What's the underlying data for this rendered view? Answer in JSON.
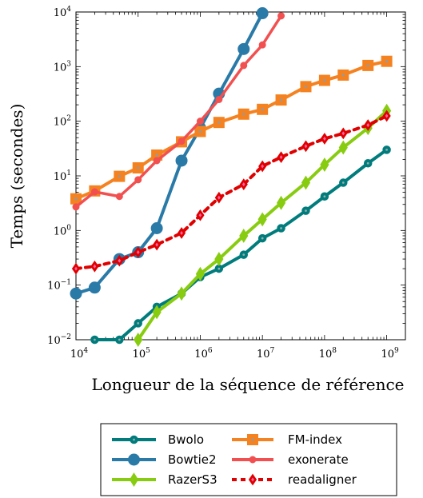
{
  "chart_data": {
    "type": "line",
    "xlabel": "Longueur de la séquence de référence",
    "ylabel": "Temps (secondes)",
    "xscale": "log",
    "yscale": "log",
    "xlim": [
      10000,
      2000000000
    ],
    "ylim": [
      0.01,
      10000
    ],
    "grid": false,
    "legend_position": "bottom",
    "x_ticks": [
      {
        "base": "10",
        "exp": "4",
        "value": 10000
      },
      {
        "base": "10",
        "exp": "5",
        "value": 100000
      },
      {
        "base": "10",
        "exp": "6",
        "value": 1000000
      },
      {
        "base": "10",
        "exp": "7",
        "value": 10000000
      },
      {
        "base": "10",
        "exp": "8",
        "value": 100000000
      },
      {
        "base": "10",
        "exp": "9",
        "value": 1000000000
      }
    ],
    "y_ticks": [
      {
        "base": "10",
        "exp": "−2",
        "value": 0.01
      },
      {
        "base": "10",
        "exp": "−1",
        "value": 0.1
      },
      {
        "base": "10",
        "exp": "0",
        "value": 1
      },
      {
        "base": "10",
        "exp": "1",
        "value": 10
      },
      {
        "base": "10",
        "exp": "2",
        "value": 100
      },
      {
        "base": "10",
        "exp": "3",
        "value": 1000
      },
      {
        "base": "10",
        "exp": "4",
        "value": 10000
      }
    ],
    "series": [
      {
        "name": "Bwolo",
        "color": "#007C7C",
        "marker": "circle",
        "dashed": false,
        "points": [
          [
            20000,
            0.01
          ],
          [
            50000,
            0.01
          ],
          [
            100000,
            0.02
          ],
          [
            200000,
            0.04
          ],
          [
            500000,
            0.07
          ],
          [
            1000000,
            0.14
          ],
          [
            2000000,
            0.2
          ],
          [
            5000000,
            0.36
          ],
          [
            10000000,
            0.72
          ],
          [
            20000000,
            1.1
          ],
          [
            50000000,
            2.3
          ],
          [
            100000000,
            4.2
          ],
          [
            200000000,
            7.5
          ],
          [
            500000000,
            17
          ],
          [
            1000000000,
            30
          ]
        ]
      },
      {
        "name": "Bowtie2",
        "color": "#2A7AA8",
        "marker": "circle-large",
        "dashed": false,
        "points": [
          [
            10000,
            0.07
          ],
          [
            20000,
            0.09
          ],
          [
            50000,
            0.3
          ],
          [
            100000,
            0.4
          ],
          [
            200000,
            1.1
          ],
          [
            500000,
            19
          ],
          [
            1000000,
            75
          ],
          [
            2000000,
            320
          ],
          [
            5000000,
            2100
          ],
          [
            10000000,
            9500
          ]
        ]
      },
      {
        "name": "RazerS3",
        "color": "#88CC11",
        "marker": "diamond",
        "dashed": false,
        "points": [
          [
            100000,
            0.01
          ],
          [
            200000,
            0.032
          ],
          [
            500000,
            0.07
          ],
          [
            1000000,
            0.16
          ],
          [
            2000000,
            0.3
          ],
          [
            5000000,
            0.8
          ],
          [
            10000000,
            1.6
          ],
          [
            20000000,
            3.2
          ],
          [
            50000000,
            7.5
          ],
          [
            100000000,
            16
          ],
          [
            200000000,
            33
          ],
          [
            500000000,
            75
          ],
          [
            1000000000,
            155
          ]
        ]
      },
      {
        "name": "FM-index",
        "color": "#F58220",
        "marker": "square",
        "dashed": false,
        "points": [
          [
            10000,
            3.8
          ],
          [
            20000,
            5.3
          ],
          [
            50000,
            9.8
          ],
          [
            100000,
            14
          ],
          [
            200000,
            24
          ],
          [
            500000,
            42
          ],
          [
            1000000,
            65
          ],
          [
            2000000,
            95
          ],
          [
            5000000,
            135
          ],
          [
            10000000,
            165
          ],
          [
            20000000,
            245
          ],
          [
            50000000,
            430
          ],
          [
            100000000,
            560
          ],
          [
            200000000,
            700
          ],
          [
            500000000,
            1050
          ],
          [
            1000000000,
            1250
          ]
        ]
      },
      {
        "name": "exonerate",
        "color": "#F25050",
        "marker": "circle-small",
        "dashed": false,
        "points": [
          [
            10000,
            2.7
          ],
          [
            20000,
            5.1
          ],
          [
            50000,
            4.2
          ],
          [
            100000,
            8.5
          ],
          [
            200000,
            19
          ],
          [
            500000,
            43
          ],
          [
            1000000,
            100
          ],
          [
            2000000,
            250
          ],
          [
            5000000,
            1050
          ],
          [
            10000000,
            2500
          ],
          [
            20000000,
            8500
          ]
        ]
      },
      {
        "name": "readaligner",
        "color": "#E00000",
        "marker": "diamond-dashed",
        "dashed": true,
        "points": [
          [
            10000,
            0.2
          ],
          [
            20000,
            0.22
          ],
          [
            50000,
            0.28
          ],
          [
            100000,
            0.4
          ],
          [
            200000,
            0.55
          ],
          [
            500000,
            0.9
          ],
          [
            1000000,
            1.9
          ],
          [
            2000000,
            4
          ],
          [
            5000000,
            7
          ],
          [
            10000000,
            15
          ],
          [
            20000000,
            22
          ],
          [
            50000000,
            35
          ],
          [
            100000000,
            48
          ],
          [
            200000000,
            60
          ],
          [
            500000000,
            85
          ],
          [
            1000000000,
            125
          ]
        ]
      }
    ]
  }
}
